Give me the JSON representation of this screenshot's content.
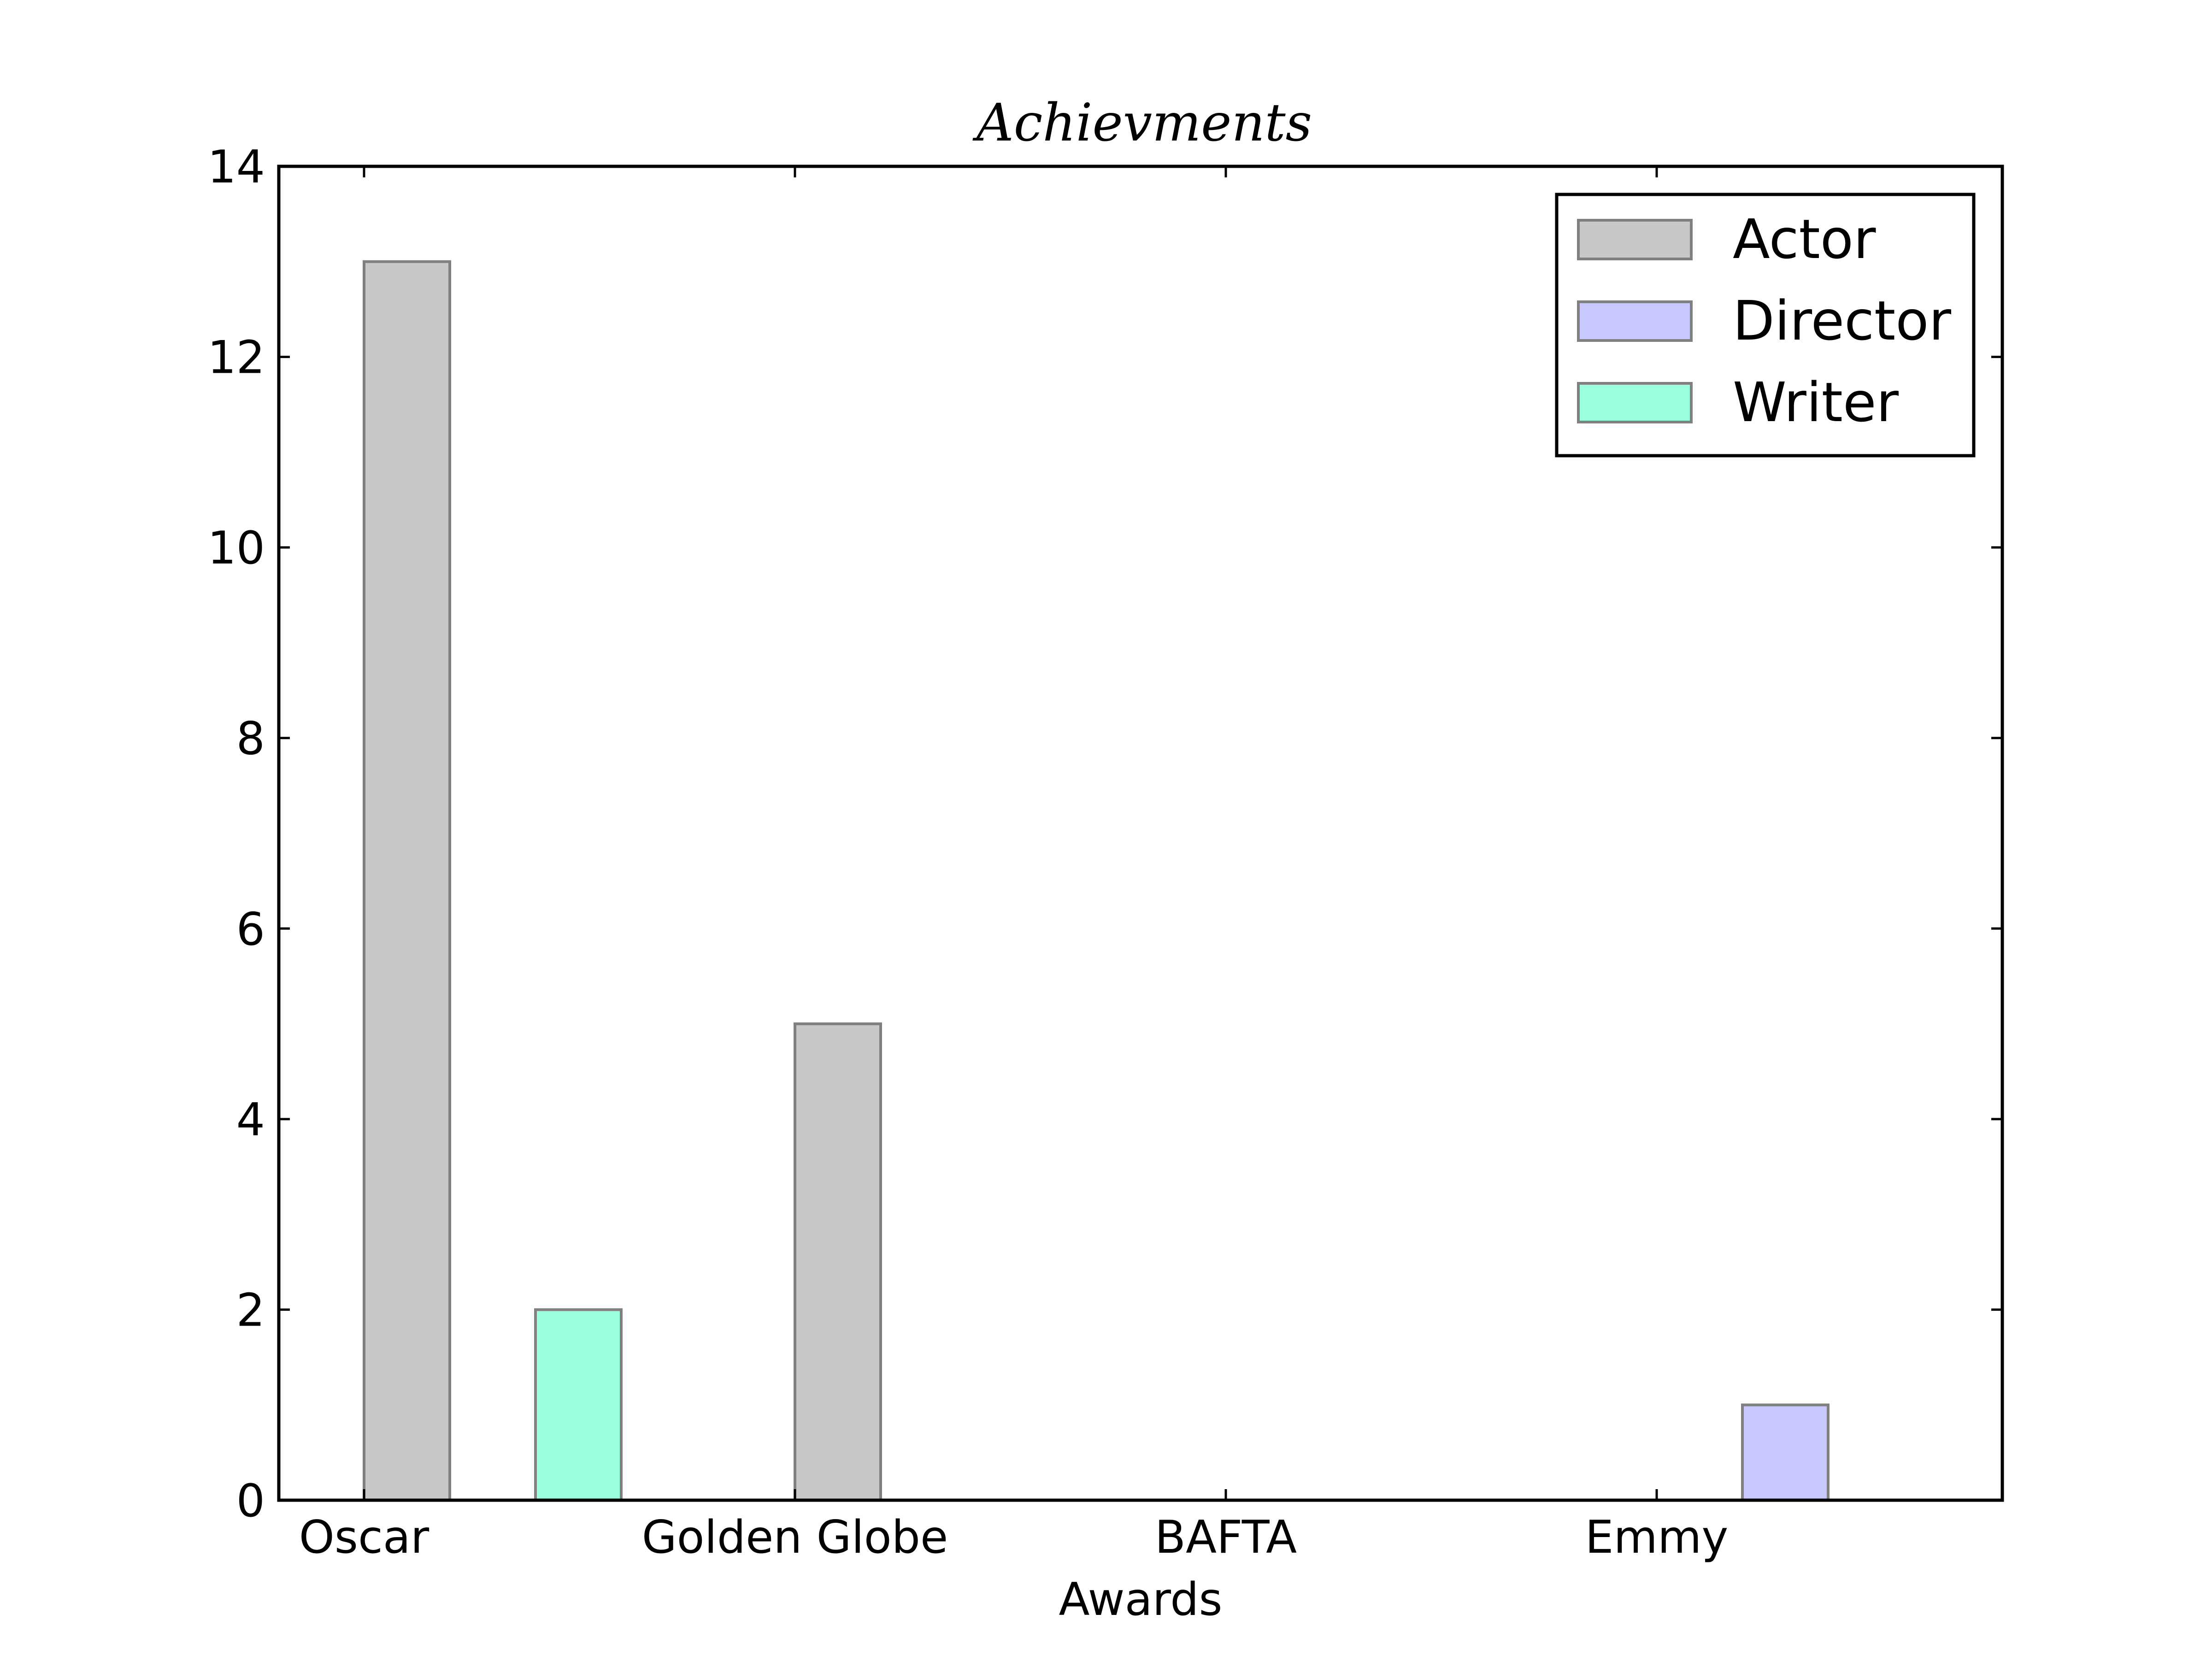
{
  "chart_data": {
    "type": "bar",
    "title": "Achievments",
    "xlabel": "Awards",
    "ylabel": "",
    "categories": [
      "Oscar",
      "Golden Globe",
      "BAFTA",
      "Emmy"
    ],
    "series": [
      {
        "name": "Actor",
        "values": [
          13,
          5,
          0,
          0
        ],
        "color": "#c8c8c8"
      },
      {
        "name": "Director",
        "values": [
          0,
          0,
          0,
          1
        ],
        "color": "#c8c8ff"
      },
      {
        "name": "Writer",
        "values": [
          2,
          0,
          0,
          0
        ],
        "color": "#99ffdd"
      }
    ],
    "ylim": [
      0,
      14
    ],
    "yticks": [
      "0",
      "2",
      "4",
      "6",
      "8",
      "10",
      "12",
      "14"
    ],
    "grid": false,
    "legend_position": "top-right",
    "edge_color": "#808080"
  }
}
